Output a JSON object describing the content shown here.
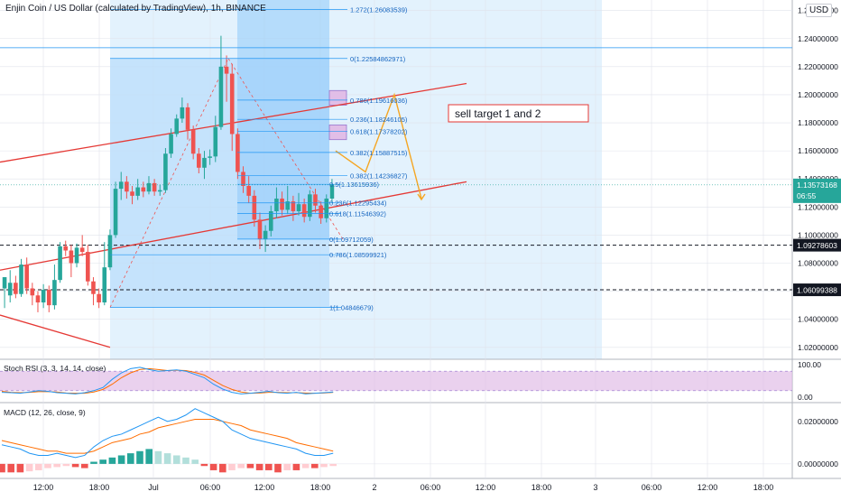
{
  "header": {
    "title": "Enjin Coin / US Dollar (calculated by TradingView), 1h, BINANCE",
    "currency_label": "USD"
  },
  "colors": {
    "up": "#26a69a",
    "down": "#ef5350",
    "channel": "#e53935",
    "fib": "#2196f3",
    "zone": "#bbdefb",
    "pattern": "#f5a623",
    "price_tag": "#26a69a",
    "stoch_k": "#2196f3",
    "stoch_d": "#ff6d00",
    "stoch_band": "#e1bee7",
    "macd_line": "#2196f3",
    "signal_line": "#ff6d00"
  },
  "chart_data": {
    "type": "candlestick",
    "title": "Enjin Coin / US Dollar (calculated by TradingView), 1h, BINANCE",
    "timeframe": "1h",
    "exchange": "BINANCE",
    "x_labels": [
      "12:00",
      "18:00",
      "Jul",
      "06:00",
      "12:00",
      "18:00",
      "2",
      "06:00",
      "12:00",
      "18:00",
      "3",
      "06:00",
      "12:00",
      "18:00"
    ],
    "y_labels": [
      "1.02000000",
      "1.04000000",
      "1.06000000",
      "1.08000000",
      "1.10000000",
      "1.12000000",
      "1.14000000",
      "1.16000000",
      "1.18000000",
      "1.20000000",
      "1.22000000",
      "1.24000000",
      "1.26000000"
    ],
    "ylim": [
      1.0115,
      1.2675
    ],
    "last_price": "1.13573168",
    "countdown": "06:55",
    "candles": [
      [
        1.062,
        1.07,
        1.055,
        1.048
      ],
      [
        1.057,
        1.066,
        1.075,
        1.052
      ],
      [
        1.066,
        1.058,
        1.071,
        1.055
      ],
      [
        1.058,
        1.079,
        1.083,
        1.056
      ],
      [
        1.079,
        1.062,
        1.084,
        1.058
      ],
      [
        1.062,
        1.057,
        1.066,
        1.05
      ],
      [
        1.057,
        1.052,
        1.06,
        1.045
      ],
      [
        1.052,
        1.061,
        1.065,
        1.048
      ],
      [
        1.061,
        1.05,
        1.064,
        1.045
      ],
      [
        1.05,
        1.068,
        1.079,
        1.047
      ],
      [
        1.068,
        1.092,
        1.095,
        1.066
      ],
      [
        1.092,
        1.089,
        1.096,
        1.085
      ],
      [
        1.089,
        1.08,
        1.093,
        1.07
      ],
      [
        1.08,
        1.091,
        1.094,
        1.077
      ],
      [
        1.091,
        1.088,
        1.1,
        1.085
      ],
      [
        1.088,
        1.067,
        1.093,
        1.064
      ],
      [
        1.067,
        1.058,
        1.07,
        1.05
      ],
      [
        1.058,
        1.052,
        1.062,
        1.048
      ],
      [
        1.052,
        1.077,
        1.095,
        1.05
      ],
      [
        1.077,
        1.1,
        1.104,
        1.075
      ],
      [
        1.1,
        1.133,
        1.138,
        1.098
      ],
      [
        1.133,
        1.138,
        1.145,
        1.125
      ],
      [
        1.138,
        1.131,
        1.142,
        1.126
      ],
      [
        1.131,
        1.128,
        1.135,
        1.122
      ],
      [
        1.128,
        1.134,
        1.14,
        1.125
      ],
      [
        1.134,
        1.131,
        1.138,
        1.127
      ],
      [
        1.131,
        1.137,
        1.142,
        1.129
      ],
      [
        1.137,
        1.131,
        1.14,
        1.128
      ],
      [
        1.131,
        1.132,
        1.136,
        1.128
      ],
      [
        1.132,
        1.158,
        1.162,
        1.13
      ],
      [
        1.158,
        1.172,
        1.176,
        1.155
      ],
      [
        1.172,
        1.183,
        1.186,
        1.17
      ],
      [
        1.183,
        1.191,
        1.198,
        1.18
      ],
      [
        1.191,
        1.175,
        1.194,
        1.168
      ],
      [
        1.175,
        1.158,
        1.178,
        1.154
      ],
      [
        1.158,
        1.148,
        1.162,
        1.144
      ],
      [
        1.148,
        1.155,
        1.16,
        1.14
      ],
      [
        1.155,
        1.156,
        1.161,
        1.15
      ],
      [
        1.156,
        1.177,
        1.185,
        1.152
      ],
      [
        1.177,
        1.22,
        1.242,
        1.175
      ],
      [
        1.22,
        1.215,
        1.228,
        1.195
      ],
      [
        1.215,
        1.172,
        1.222,
        1.16
      ],
      [
        1.172,
        1.145,
        1.176,
        1.14
      ],
      [
        1.145,
        1.135,
        1.149,
        1.13
      ],
      [
        1.135,
        1.128,
        1.142,
        1.123
      ],
      [
        1.128,
        1.111,
        1.132,
        1.106
      ],
      [
        1.111,
        1.097,
        1.116,
        1.09
      ],
      [
        1.097,
        1.103,
        1.107,
        1.088
      ],
      [
        1.103,
        1.117,
        1.121,
        1.099
      ],
      [
        1.117,
        1.126,
        1.134,
        1.112
      ],
      [
        1.126,
        1.118,
        1.131,
        1.114
      ],
      [
        1.118,
        1.124,
        1.135,
        1.115
      ],
      [
        1.124,
        1.117,
        1.128,
        1.11
      ],
      [
        1.117,
        1.122,
        1.13,
        1.114
      ],
      [
        1.122,
        1.113,
        1.126,
        1.109
      ],
      [
        1.113,
        1.129,
        1.132,
        1.11
      ],
      [
        1.129,
        1.121,
        1.133,
        1.116
      ],
      [
        1.121,
        1.112,
        1.124,
        1.108
      ],
      [
        1.112,
        1.126,
        1.129,
        1.109
      ],
      [
        1.126,
        1.136,
        1.14,
        1.123
      ]
    ],
    "fib_levels": [
      {
        "label": "1.272(1.26083539)",
        "value": 1.26084
      },
      {
        "label": "0(1.22584862971)",
        "value": 1.22585
      },
      {
        "label": "0.786(1.19616036)",
        "value": 1.19616
      },
      {
        "label": "0.236(1.18246105)",
        "value": 1.18246
      },
      {
        "label": "0.618(1.17378202)",
        "value": 1.17378
      },
      {
        "label": "0.382(1.15887515)",
        "value": 1.15888
      },
      {
        "label": "0.382(1.14236827)",
        "value": 1.14237
      },
      {
        "label": "0.5(1.13615936)",
        "value": 1.13616
      },
      {
        "label": "0.236(1.12295434)",
        "value": 1.12295
      },
      {
        "label": "0.618(1.11546392)",
        "value": 1.11546
      },
      {
        "label": "0(1.09712059)",
        "value": 1.09712
      },
      {
        "label": "0.786(1.08599921)",
        "value": 1.086
      },
      {
        "label": "1(1.04846679)",
        "value": 1.04847
      }
    ],
    "horizontal_levels": [
      {
        "label": "1.09278603",
        "value": 1.09279,
        "style": "dashed"
      },
      {
        "label": "1.06099388",
        "value": 1.06099,
        "style": "dashed"
      }
    ],
    "top_line": 1.2335,
    "annotation": "sell target 1 and 2",
    "pattern_points": [
      [
        372,
        1.16
      ],
      [
        405,
        1.145
      ],
      [
        437,
        1.2
      ],
      [
        467,
        1.126
      ]
    ],
    "stoch_rsi": {
      "label": "Stoch RSI (3, 3, 14, 14, close)",
      "y_labels": [
        "100.00",
        "0.00"
      ],
      "k": [
        15,
        14,
        12,
        16,
        20,
        18,
        14,
        12,
        10,
        14,
        20,
        30,
        55,
        75,
        88,
        92,
        85,
        80,
        82,
        84,
        80,
        70,
        60,
        40,
        25,
        15,
        10,
        12,
        15,
        18,
        14,
        12,
        15,
        10,
        12,
        14,
        16
      ],
      "d": [
        18,
        15,
        14,
        15,
        17,
        17,
        16,
        13,
        12,
        12,
        16,
        24,
        40,
        60,
        75,
        85,
        88,
        85,
        82,
        83,
        82,
        76,
        68,
        52,
        36,
        24,
        16,
        12,
        13,
        15,
        15,
        14,
        14,
        13,
        12,
        13,
        15
      ]
    },
    "macd": {
      "label": "MACD (12, 26, close, 9)",
      "y_labels": [
        "0.02000000",
        "0.00000000"
      ],
      "ylim": [
        -0.006,
        0.028
      ],
      "macd_line": [
        0.009,
        0.008,
        0.007,
        0.005,
        0.004,
        0.004,
        0.005,
        0.004,
        0.003,
        0.004,
        0.008,
        0.011,
        0.013,
        0.014,
        0.016,
        0.018,
        0.02,
        0.022,
        0.02,
        0.021,
        0.023,
        0.026,
        0.024,
        0.022,
        0.02,
        0.016,
        0.014,
        0.012,
        0.011,
        0.01,
        0.009,
        0.008,
        0.007,
        0.005,
        0.004,
        0.004,
        0.005
      ],
      "signal_line": [
        0.011,
        0.01,
        0.009,
        0.008,
        0.007,
        0.006,
        0.006,
        0.005,
        0.005,
        0.005,
        0.006,
        0.008,
        0.01,
        0.011,
        0.012,
        0.014,
        0.015,
        0.017,
        0.018,
        0.019,
        0.02,
        0.021,
        0.021,
        0.021,
        0.02,
        0.019,
        0.018,
        0.016,
        0.015,
        0.014,
        0.013,
        0.012,
        0.01,
        0.009,
        0.008,
        0.007,
        0.006
      ],
      "histogram": [
        -0.004,
        -0.004,
        -0.004,
        -0.0035,
        -0.003,
        -0.002,
        -0.0015,
        -0.001,
        -0.0015,
        -0.002,
        0.001,
        0.002,
        0.003,
        0.004,
        0.005,
        0.006,
        0.007,
        0.006,
        0.005,
        0.004,
        0.003,
        0.002,
        -0.001,
        -0.003,
        -0.004,
        -0.003,
        -0.002,
        -0.002,
        -0.003,
        -0.003,
        -0.004,
        -0.003,
        -0.003,
        -0.002,
        -0.002,
        -0.0015,
        -0.001
      ]
    }
  }
}
